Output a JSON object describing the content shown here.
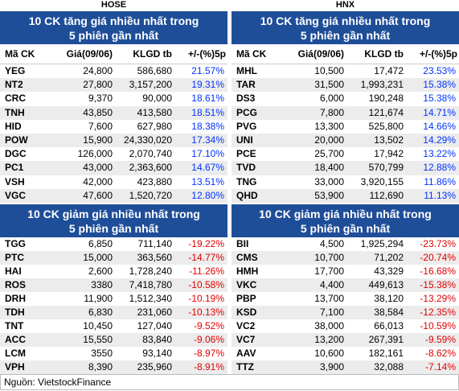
{
  "panels": [
    {
      "exchange": "HOSE",
      "gainers": {
        "title": "10 CK tăng giá nhiều nhất trong 5 phiên gần nhất",
        "headers": [
          "Mã CK",
          "Giá(09/06)",
          "KLGD tb",
          "+/-(%)5p"
        ],
        "rows": [
          [
            "YEG",
            "24,800",
            "586,680",
            "21.57%"
          ],
          [
            "NT2",
            "27,800",
            "3,157,200",
            "19.31%"
          ],
          [
            "CRC",
            "9,370",
            "90,000",
            "18.61%"
          ],
          [
            "TNH",
            "43,850",
            "413,580",
            "18.51%"
          ],
          [
            "HID",
            "7,600",
            "627,980",
            "18.38%"
          ],
          [
            "POW",
            "15,900",
            "24,330,020",
            "17.34%"
          ],
          [
            "DGC",
            "126,000",
            "2,070,740",
            "17.10%"
          ],
          [
            "PC1",
            "43,000",
            "2,363,600",
            "14.67%"
          ],
          [
            "VSH",
            "42,000",
            "423,880",
            "13.51%"
          ],
          [
            "VGC",
            "47,600",
            "1,520,720",
            "12.80%"
          ]
        ]
      },
      "losers": {
        "title": "10 CK giảm giá nhiều nhất trong 5 phiên gần nhất",
        "rows": [
          [
            "TGG",
            "6,850",
            "711,140",
            "-19.22%"
          ],
          [
            "PTC",
            "15,000",
            "363,560",
            "-14.77%"
          ],
          [
            "HAI",
            "2,600",
            "1,728,240",
            "-11.26%"
          ],
          [
            "ROS",
            "3380",
            "7,418,780",
            "-10.58%"
          ],
          [
            "DRH",
            "11,900",
            "1,512,340",
            "-10.19%"
          ],
          [
            "TDH",
            "6,830",
            "231,060",
            "-10.13%"
          ],
          [
            "TNT",
            "10,450",
            "127,040",
            "-9.52%"
          ],
          [
            "ACC",
            "15,550",
            "83,840",
            "-9.06%"
          ],
          [
            "LCM",
            "3550",
            "93,140",
            "-8.97%"
          ],
          [
            "VPH",
            "8,390",
            "235,960",
            "-8.91%"
          ]
        ]
      }
    },
    {
      "exchange": "HNX",
      "gainers": {
        "title": "10 CK tăng giá nhiều nhất trong 5 phiên gần nhất",
        "headers": [
          "Mã CK",
          "Giá(09/06)",
          "KLGD tb",
          "+/-(%)5p"
        ],
        "rows": [
          [
            "MHL",
            "10,500",
            "17,472",
            "23.53%"
          ],
          [
            "TAR",
            "31,500",
            "1,993,231",
            "15.38%"
          ],
          [
            "DS3",
            "6,000",
            "190,248",
            "15.38%"
          ],
          [
            "PCG",
            "7,800",
            "121,674",
            "14.71%"
          ],
          [
            "PVG",
            "13,300",
            "525,800",
            "14.66%"
          ],
          [
            "UNI",
            "20,000",
            "13,502",
            "14.29%"
          ],
          [
            "PCE",
            "25,700",
            "17,942",
            "13.22%"
          ],
          [
            "TVD",
            "18,400",
            "570,799",
            "12.88%"
          ],
          [
            "TNG",
            "33,000",
            "3,920,155",
            "11.86%"
          ],
          [
            "QHD",
            "53,900",
            "112,690",
            "11.13%"
          ]
        ]
      },
      "losers": {
        "title": "10 CK giảm giá nhiều nhất trong 5 phiên gần nhất",
        "rows": [
          [
            "BII",
            "4,500",
            "1,925,294",
            "-23.73%"
          ],
          [
            "CMS",
            "10,700",
            "71,202",
            "-20.74%"
          ],
          [
            "HMH",
            "17,700",
            "43,329",
            "-16.68%"
          ],
          [
            "VKC",
            "4,400",
            "449,613",
            "-15.38%"
          ],
          [
            "PBP",
            "13,700",
            "38,120",
            "-13.29%"
          ],
          [
            "KSD",
            "7,100",
            "38,584",
            "-12.35%"
          ],
          [
            "VC2",
            "38,000",
            "66,013",
            "-10.59%"
          ],
          [
            "VC7",
            "13,200",
            "267,391",
            "-9.59%"
          ],
          [
            "AAV",
            "10,600",
            "182,161",
            "-8.62%"
          ],
          [
            "TTZ",
            "3,900",
            "32,088",
            "-7.14%"
          ]
        ]
      }
    }
  ],
  "source": "Nguồn: VietstockFinance"
}
